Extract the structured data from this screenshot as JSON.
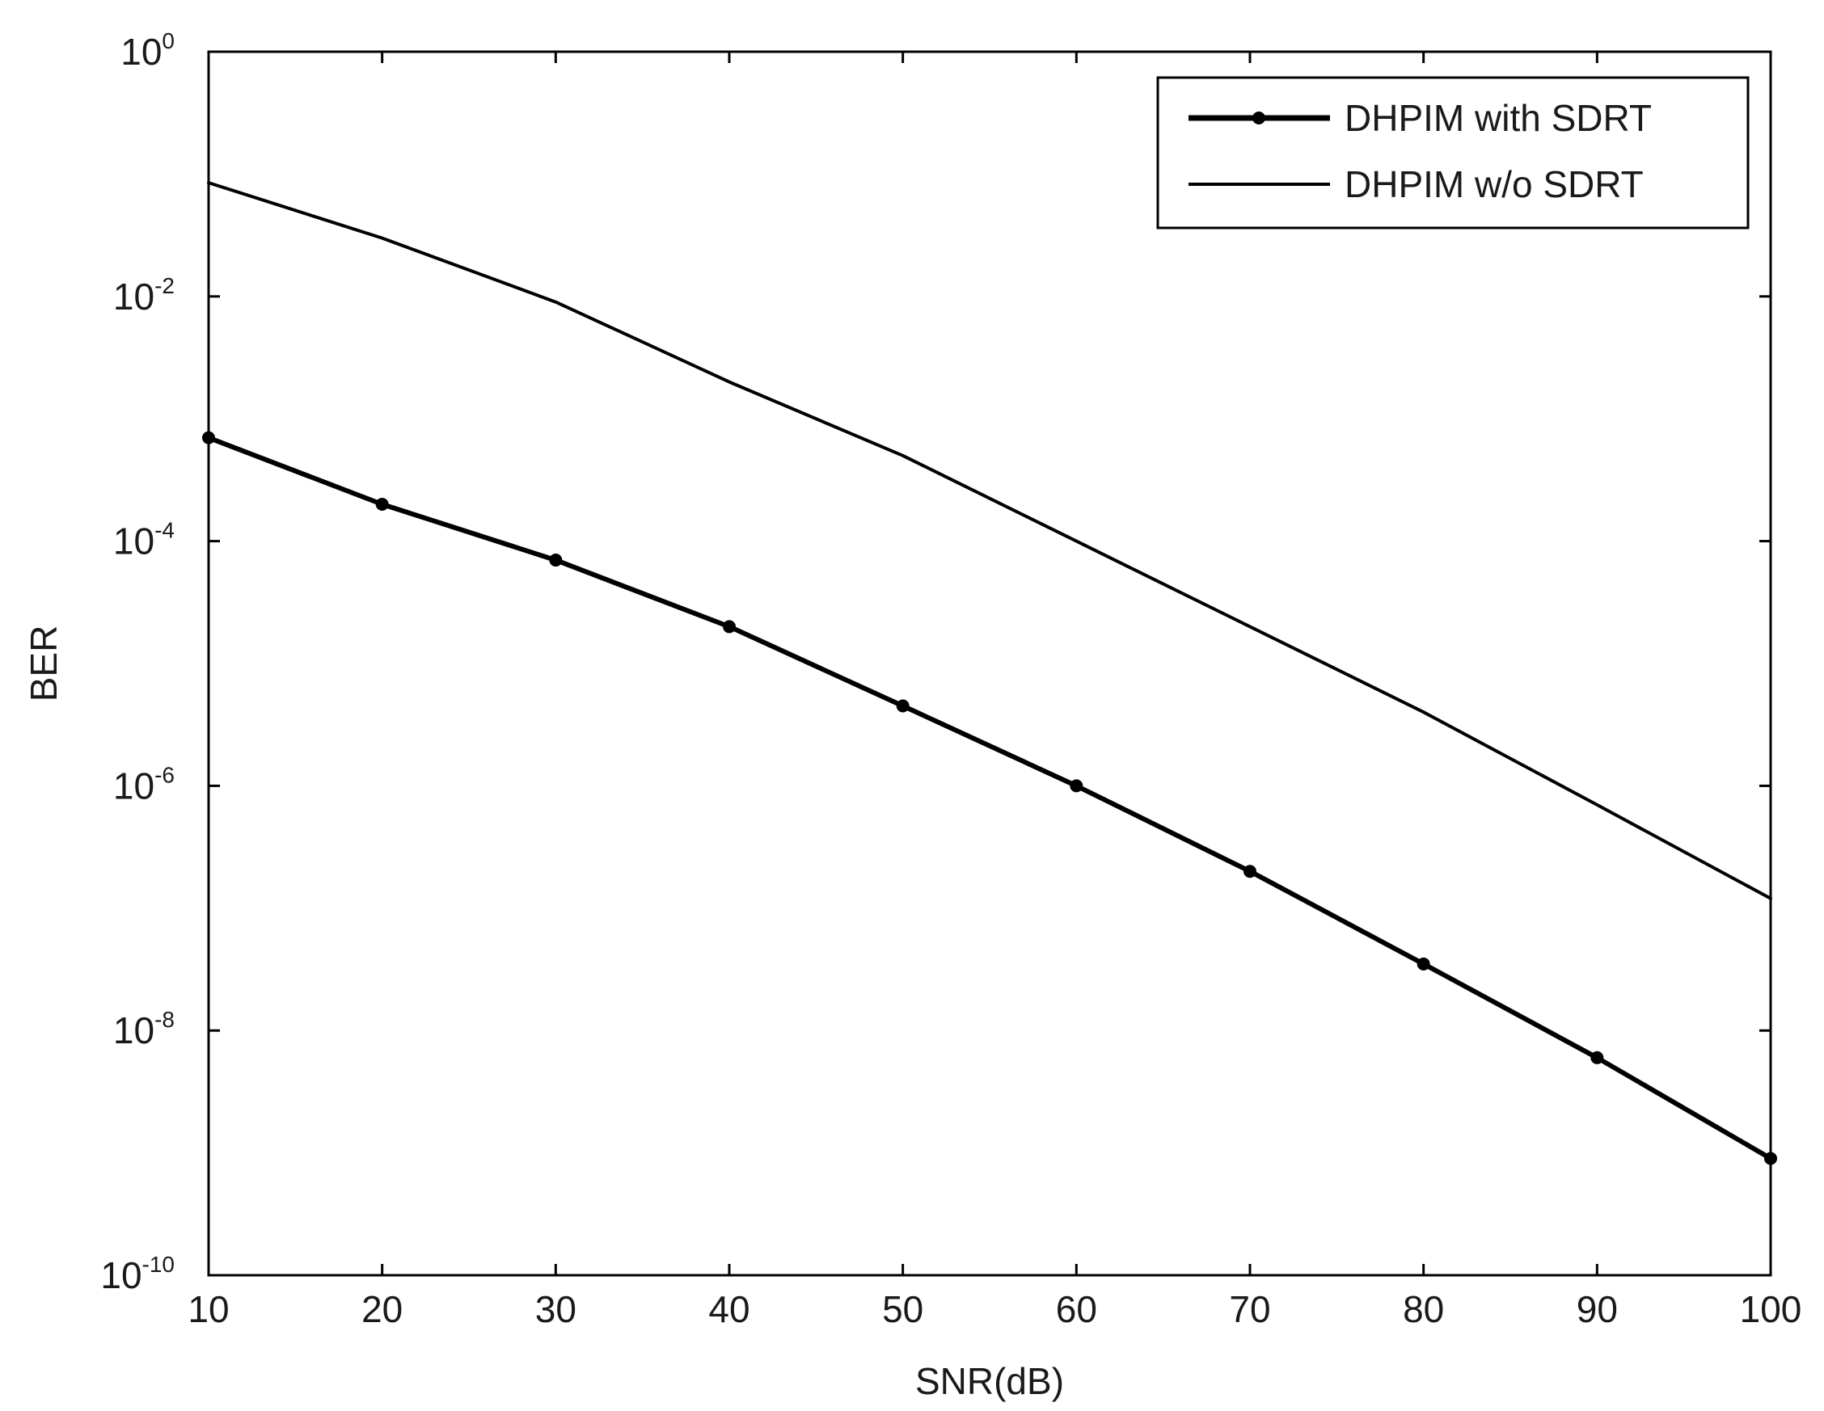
{
  "chart_data": {
    "type": "line",
    "xlabel": "SNR(dB)",
    "ylabel": "BER",
    "xlim": [
      10,
      100
    ],
    "ylim": [
      1e-10,
      1
    ],
    "yscale": "log",
    "x_ticks": [
      "10",
      "20",
      "30",
      "40",
      "50",
      "60",
      "70",
      "80",
      "90",
      "100"
    ],
    "y_ticks": [
      {
        "base": "10",
        "exp": "0",
        "value": 1
      },
      {
        "base": "10",
        "exp": "-2",
        "value": 0.01
      },
      {
        "base": "10",
        "exp": "-4",
        "value": 0.0001
      },
      {
        "base": "10",
        "exp": "-6",
        "value": 1e-06
      },
      {
        "base": "10",
        "exp": "-8",
        "value": 1e-08
      },
      {
        "base": "10",
        "exp": "-10",
        "value": 1e-10
      }
    ],
    "grid": false,
    "legend_position": "top-right",
    "series": [
      {
        "name": "DHPIM with SDRT",
        "marker": "dot",
        "line_width": "thick",
        "x": [
          10,
          20,
          30,
          40,
          50,
          60,
          70,
          80,
          90,
          100
        ],
        "y": [
          0.0007,
          0.0002,
          7e-05,
          2e-05,
          4.5e-06,
          1e-06,
          2e-07,
          3.5e-08,
          6e-09,
          9e-10
        ]
      },
      {
        "name": "DHPIM w/o SDRT",
        "marker": "none",
        "line_width": "normal",
        "x": [
          10,
          20,
          30,
          40,
          50,
          60,
          70,
          80,
          90,
          100
        ],
        "y": [
          0.085,
          0.03,
          0.009,
          0.002,
          0.0005,
          0.0001,
          2e-05,
          4e-06,
          7e-07,
          1.2e-07
        ]
      }
    ]
  }
}
